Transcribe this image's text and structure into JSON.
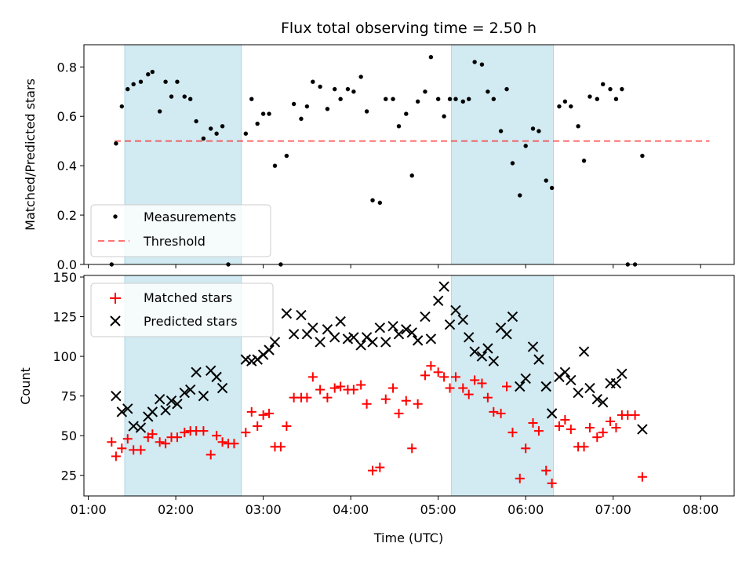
{
  "chart_data": [
    {
      "type": "scatter",
      "title": "Flux total observing time = 2.50 h",
      "xlabel": "",
      "ylabel": "Matched/Predicted stars",
      "xlim": [
        "00:57",
        "08:23"
      ],
      "ylim": [
        0,
        0.89
      ],
      "yticks": [
        0.0,
        0.2,
        0.4,
        0.6,
        0.8
      ],
      "ytick_labels": [
        "0.0",
        "0.2",
        "0.4",
        "0.6",
        "0.8"
      ],
      "grid": false,
      "legend_position": "lower-left",
      "shaded_intervals": [
        [
          "01:25",
          "02:45"
        ],
        [
          "05:09",
          "06:19"
        ]
      ],
      "shade_color": "#add8e6",
      "threshold": {
        "name": "Threshold",
        "y": 0.5,
        "x_range": [
          "01:18",
          "08:06"
        ],
        "color": "#ff0000",
        "style": "dashed"
      },
      "series": [
        {
          "name": "Measurements",
          "marker": "dot",
          "color": "#000000",
          "points": [
            [
              "01:16",
              0.0
            ],
            [
              "01:19",
              0.49
            ],
            [
              "01:23",
              0.64
            ],
            [
              "01:27",
              0.71
            ],
            [
              "01:31",
              0.73
            ],
            [
              "01:36",
              0.74
            ],
            [
              "01:41",
              0.77
            ],
            [
              "01:44",
              0.78
            ],
            [
              "01:49",
              0.62
            ],
            [
              "01:53",
              0.74
            ],
            [
              "01:57",
              0.68
            ],
            [
              "02:01",
              0.74
            ],
            [
              "02:06",
              0.68
            ],
            [
              "02:10",
              0.67
            ],
            [
              "02:14",
              0.58
            ],
            [
              "02:19",
              0.51
            ],
            [
              "02:24",
              0.55
            ],
            [
              "02:28",
              0.53
            ],
            [
              "02:32",
              0.56
            ],
            [
              "02:36",
              0.0
            ],
            [
              "02:48",
              0.53
            ],
            [
              "02:52",
              0.67
            ],
            [
              "02:56",
              0.57
            ],
            [
              "03:00",
              0.61
            ],
            [
              "03:04",
              0.61
            ],
            [
              "03:08",
              0.4
            ],
            [
              "03:12",
              0.0
            ],
            [
              "03:16",
              0.44
            ],
            [
              "03:21",
              0.65
            ],
            [
              "03:26",
              0.59
            ],
            [
              "03:30",
              0.64
            ],
            [
              "03:34",
              0.74
            ],
            [
              "03:39",
              0.72
            ],
            [
              "03:44",
              0.63
            ],
            [
              "03:49",
              0.71
            ],
            [
              "03:53",
              0.67
            ],
            [
              "03:58",
              0.71
            ],
            [
              "04:02",
              0.7
            ],
            [
              "04:07",
              0.76
            ],
            [
              "04:11",
              0.62
            ],
            [
              "04:15",
              0.26
            ],
            [
              "04:20",
              0.25
            ],
            [
              "04:24",
              0.67
            ],
            [
              "04:29",
              0.67
            ],
            [
              "04:33",
              0.56
            ],
            [
              "04:38",
              0.61
            ],
            [
              "04:42",
              0.36
            ],
            [
              "04:46",
              0.66
            ],
            [
              "04:51",
              0.7
            ],
            [
              "04:55",
              0.84
            ],
            [
              "05:00",
              0.67
            ],
            [
              "05:04",
              0.6
            ],
            [
              "05:08",
              0.67
            ],
            [
              "05:12",
              0.67
            ],
            [
              "05:17",
              0.66
            ],
            [
              "05:21",
              0.67
            ],
            [
              "05:25",
              0.82
            ],
            [
              "05:30",
              0.81
            ],
            [
              "05:34",
              0.7
            ],
            [
              "05:38",
              0.67
            ],
            [
              "05:43",
              0.54
            ],
            [
              "05:47",
              0.71
            ],
            [
              "05:51",
              0.41
            ],
            [
              "05:56",
              0.28
            ],
            [
              "06:00",
              0.48
            ],
            [
              "06:05",
              0.55
            ],
            [
              "06:09",
              0.54
            ],
            [
              "06:14",
              0.34
            ],
            [
              "06:18",
              0.31
            ],
            [
              "06:23",
              0.64
            ],
            [
              "06:27",
              0.66
            ],
            [
              "06:31",
              0.64
            ],
            [
              "06:36",
              0.56
            ],
            [
              "06:40",
              0.42
            ],
            [
              "06:44",
              0.68
            ],
            [
              "06:49",
              0.67
            ],
            [
              "06:53",
              0.73
            ],
            [
              "06:58",
              0.71
            ],
            [
              "07:02",
              0.67
            ],
            [
              "07:06",
              0.71
            ],
            [
              "07:10",
              0.0
            ],
            [
              "07:15",
              0.0
            ],
            [
              "07:20",
              0.44
            ]
          ]
        }
      ]
    },
    {
      "type": "scatter",
      "title": "",
      "xlabel": "Time (UTC)",
      "ylabel": "Count",
      "xlim": [
        "00:57",
        "08:23"
      ],
      "ylim": [
        12,
        151
      ],
      "xticks": [
        "01:00",
        "02:00",
        "03:00",
        "04:00",
        "05:00",
        "06:00",
        "07:00",
        "08:00"
      ],
      "xtick_labels": [
        "01:00",
        "02:00",
        "03:00",
        "04:00",
        "05:00",
        "06:00",
        "07:00",
        "08:00"
      ],
      "yticks": [
        25,
        50,
        75,
        100,
        125,
        150
      ],
      "ytick_labels": [
        "25",
        "50",
        "75",
        "100",
        "125",
        "150"
      ],
      "grid": false,
      "legend_position": "top-left",
      "shaded_intervals": [
        [
          "01:25",
          "02:45"
        ],
        [
          "05:09",
          "06:19"
        ]
      ],
      "shade_color": "#add8e6",
      "series": [
        {
          "name": "Matched stars",
          "marker": "plus",
          "color": "#ff0000",
          "points": [
            [
              "01:16",
              46
            ],
            [
              "01:19",
              37
            ],
            [
              "01:23",
              42
            ],
            [
              "01:27",
              48
            ],
            [
              "01:31",
              41
            ],
            [
              "01:36",
              41
            ],
            [
              "01:41",
              49
            ],
            [
              "01:44",
              51
            ],
            [
              "01:49",
              46
            ],
            [
              "01:53",
              45
            ],
            [
              "01:57",
              49
            ],
            [
              "02:01",
              49
            ],
            [
              "02:06",
              52
            ],
            [
              "02:10",
              53
            ],
            [
              "02:14",
              53
            ],
            [
              "02:19",
              53
            ],
            [
              "02:24",
              38
            ],
            [
              "02:28",
              50
            ],
            [
              "02:32",
              46
            ],
            [
              "02:36",
              45
            ],
            [
              "02:40",
              45
            ],
            [
              "02:48",
              52
            ],
            [
              "02:52",
              65
            ],
            [
              "02:56",
              56
            ],
            [
              "03:00",
              63
            ],
            [
              "03:04",
              64
            ],
            [
              "03:08",
              43
            ],
            [
              "03:12",
              43
            ],
            [
              "03:16",
              56
            ],
            [
              "03:21",
              74
            ],
            [
              "03:26",
              74
            ],
            [
              "03:30",
              74
            ],
            [
              "03:34",
              87
            ],
            [
              "03:39",
              79
            ],
            [
              "03:44",
              74
            ],
            [
              "03:49",
              80
            ],
            [
              "03:53",
              81
            ],
            [
              "03:58",
              79
            ],
            [
              "04:02",
              79
            ],
            [
              "04:07",
              82
            ],
            [
              "04:11",
              70
            ],
            [
              "04:15",
              28
            ],
            [
              "04:20",
              30
            ],
            [
              "04:24",
              73
            ],
            [
              "04:29",
              80
            ],
            [
              "04:33",
              64
            ],
            [
              "04:38",
              72
            ],
            [
              "04:42",
              42
            ],
            [
              "04:46",
              70
            ],
            [
              "04:51",
              88
            ],
            [
              "04:55",
              94
            ],
            [
              "05:00",
              90
            ],
            [
              "05:04",
              87
            ],
            [
              "05:08",
              80
            ],
            [
              "05:12",
              87
            ],
            [
              "05:17",
              80
            ],
            [
              "05:21",
              76
            ],
            [
              "05:25",
              85
            ],
            [
              "05:30",
              83
            ],
            [
              "05:34",
              74
            ],
            [
              "05:38",
              65
            ],
            [
              "05:43",
              64
            ],
            [
              "05:47",
              81
            ],
            [
              "05:51",
              52
            ],
            [
              "05:56",
              23
            ],
            [
              "06:00",
              42
            ],
            [
              "06:05",
              58
            ],
            [
              "06:09",
              53
            ],
            [
              "06:14",
              28
            ],
            [
              "06:18",
              20
            ],
            [
              "06:23",
              56
            ],
            [
              "06:27",
              60
            ],
            [
              "06:31",
              54
            ],
            [
              "06:36",
              43
            ],
            [
              "06:40",
              43
            ],
            [
              "06:44",
              55
            ],
            [
              "06:49",
              49
            ],
            [
              "06:53",
              52
            ],
            [
              "06:58",
              59
            ],
            [
              "07:02",
              55
            ],
            [
              "07:06",
              63
            ],
            [
              "07:10",
              63
            ],
            [
              "07:15",
              63
            ],
            [
              "07:20",
              24
            ]
          ]
        },
        {
          "name": "Predicted stars",
          "marker": "x",
          "color": "#000000",
          "points": [
            [
              "01:19",
              75
            ],
            [
              "01:23",
              65
            ],
            [
              "01:27",
              67
            ],
            [
              "01:31",
              56
            ],
            [
              "01:36",
              55
            ],
            [
              "01:41",
              62
            ],
            [
              "01:44",
              65
            ],
            [
              "01:49",
              73
            ],
            [
              "01:53",
              66
            ],
            [
              "01:57",
              72
            ],
            [
              "02:01",
              70
            ],
            [
              "02:06",
              77
            ],
            [
              "02:10",
              79
            ],
            [
              "02:14",
              90
            ],
            [
              "02:19",
              75
            ],
            [
              "02:24",
              91
            ],
            [
              "02:28",
              87
            ],
            [
              "02:32",
              80
            ],
            [
              "02:48",
              98
            ],
            [
              "02:52",
              97
            ],
            [
              "02:56",
              98
            ],
            [
              "03:00",
              101
            ],
            [
              "03:04",
              104
            ],
            [
              "03:08",
              109
            ],
            [
              "03:16",
              127
            ],
            [
              "03:21",
              114
            ],
            [
              "03:26",
              126
            ],
            [
              "03:30",
              114
            ],
            [
              "03:34",
              118
            ],
            [
              "03:39",
              109
            ],
            [
              "03:44",
              117
            ],
            [
              "03:49",
              112
            ],
            [
              "03:53",
              122
            ],
            [
              "03:58",
              111
            ],
            [
              "04:02",
              112
            ],
            [
              "04:07",
              107
            ],
            [
              "04:11",
              112
            ],
            [
              "04:15",
              109
            ],
            [
              "04:20",
              118
            ],
            [
              "04:24",
              109
            ],
            [
              "04:29",
              119
            ],
            [
              "04:33",
              114
            ],
            [
              "04:38",
              117
            ],
            [
              "04:42",
              115
            ],
            [
              "04:46",
              110
            ],
            [
              "04:51",
              125
            ],
            [
              "04:55",
              111
            ],
            [
              "05:00",
              135
            ],
            [
              "05:04",
              144
            ],
            [
              "05:08",
              120
            ],
            [
              "05:12",
              129
            ],
            [
              "05:17",
              123
            ],
            [
              "05:21",
              112
            ],
            [
              "05:25",
              103
            ],
            [
              "05:30",
              100
            ],
            [
              "05:34",
              105
            ],
            [
              "05:38",
              97
            ],
            [
              "05:43",
              118
            ],
            [
              "05:47",
              114
            ],
            [
              "05:51",
              125
            ],
            [
              "05:56",
              81
            ],
            [
              "06:00",
              86
            ],
            [
              "06:05",
              106
            ],
            [
              "06:09",
              98
            ],
            [
              "06:14",
              81
            ],
            [
              "06:18",
              64
            ],
            [
              "06:23",
              87
            ],
            [
              "06:27",
              90
            ],
            [
              "06:31",
              85
            ],
            [
              "06:36",
              77
            ],
            [
              "06:40",
              103
            ],
            [
              "06:44",
              80
            ],
            [
              "06:49",
              73
            ],
            [
              "06:53",
              71
            ],
            [
              "06:58",
              83
            ],
            [
              "07:02",
              83
            ],
            [
              "07:06",
              89
            ],
            [
              "07:20",
              54
            ]
          ]
        }
      ]
    }
  ]
}
